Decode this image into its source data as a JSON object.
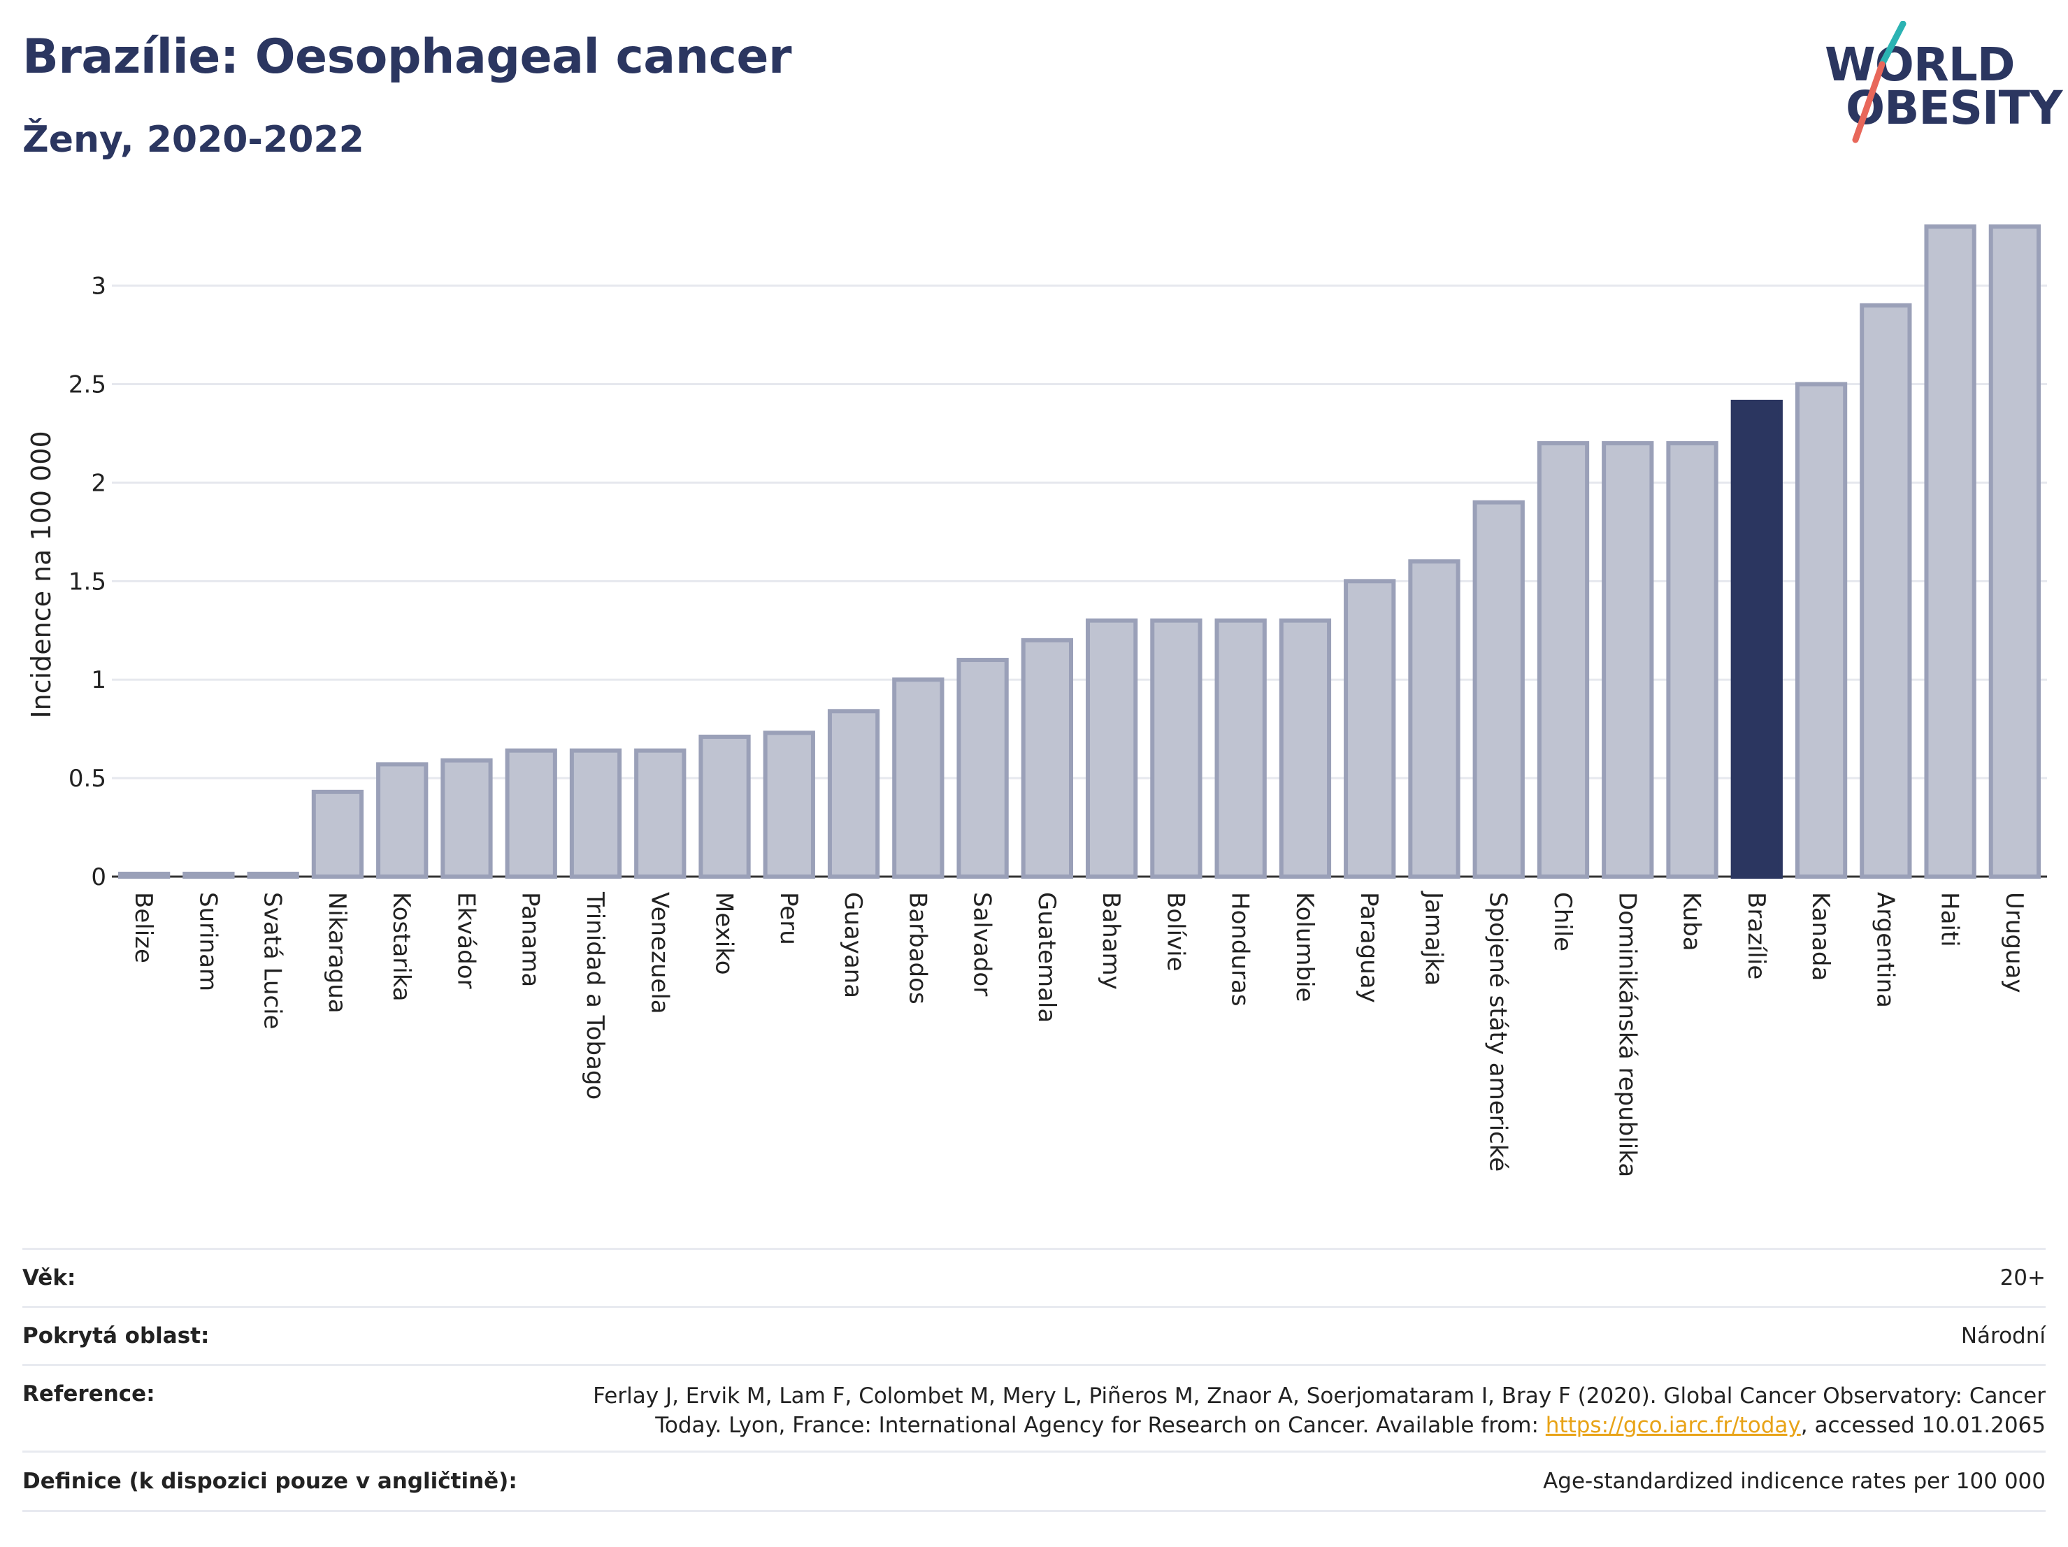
{
  "header": {
    "title": "Brazílie: Oesophageal cancer",
    "subtitle": "Ženy, 2020-2022"
  },
  "logo": {
    "line1": "WORLD",
    "line2": "OBESITY",
    "colors": {
      "text": "#2b3660",
      "slash_top": "#2bb3b3",
      "slash_bottom": "#e8675a"
    }
  },
  "chart_data": {
    "type": "bar",
    "ylabel": "Incidence na 100 000",
    "xlabel": "",
    "ylim": [
      0,
      3.35
    ],
    "yticks": [
      0,
      0.5,
      1,
      1.5,
      2,
      2.5,
      3
    ],
    "ytick_labels": [
      "0",
      "0.5",
      "1",
      "1.5",
      "2",
      "2.5",
      "3"
    ],
    "grid": true,
    "highlight": "Brazílie",
    "colors": {
      "bar": "#bfc3d1",
      "bar_edge": "#9aa0b8",
      "highlight": "#2b3660"
    },
    "categories": [
      "Belize",
      "Surinam",
      "Svatá Lucie",
      "Nikaragua",
      "Kostarika",
      "Ekvádor",
      "Panama",
      "Trinidad a Tobago",
      "Venezuela",
      "Mexiko",
      "Peru",
      "Guayana",
      "Barbados",
      "Salvador",
      "Guatemala",
      "Bahamy",
      "Bolívie",
      "Honduras",
      "Kolumbie",
      "Paraguay",
      "Jamajka",
      "Spojené státy americké",
      "Chile",
      "Dominikánská republika",
      "Kuba",
      "Brazílie",
      "Kanada",
      "Argentina",
      "Haiti",
      "Uruguay"
    ],
    "values": [
      0.01,
      0.01,
      0.01,
      0.43,
      0.57,
      0.59,
      0.64,
      0.64,
      0.64,
      0.71,
      0.73,
      0.84,
      1.0,
      1.1,
      1.2,
      1.3,
      1.3,
      1.3,
      1.3,
      1.5,
      1.6,
      1.9,
      2.2,
      2.2,
      2.2,
      2.41,
      2.5,
      2.9,
      3.3,
      3.3
    ]
  },
  "info": [
    {
      "label": "Věk:",
      "value": "20+"
    },
    {
      "label": "Pokrytá oblast:",
      "value": "Národní"
    },
    {
      "label": "Reference:",
      "value_part1": "Ferlay J, Ervik M, Lam F, Colombet M, Mery L, Piñeros M, Znaor A, Soerjomataram I, Bray F (2020). Global Cancer Observatory: Cancer Today. Lyon, France: International Agency for Research on Cancer. Available from: ",
      "link": "https://gco.iarc.fr/today",
      "value_part2": ", accessed 10.01.2065"
    },
    {
      "label": "Definice (k dispozici pouze v angličtině):",
      "value": "Age-standardized indicence rates per 100 000"
    }
  ]
}
